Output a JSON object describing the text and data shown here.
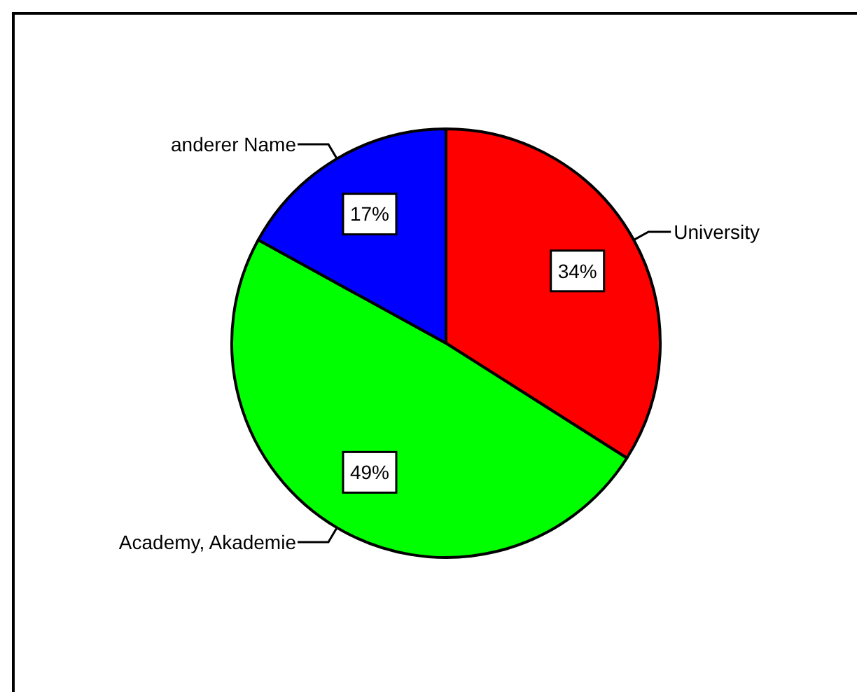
{
  "chart_data": {
    "type": "pie",
    "categories": [
      "University",
      "Academy, Akademie",
      "anderer Name"
    ],
    "values": [
      34,
      49,
      17
    ],
    "colors": [
      "#ff0000",
      "#00ff00",
      "#0000ff"
    ],
    "value_labels": [
      "34%",
      "49%",
      "17%"
    ]
  }
}
